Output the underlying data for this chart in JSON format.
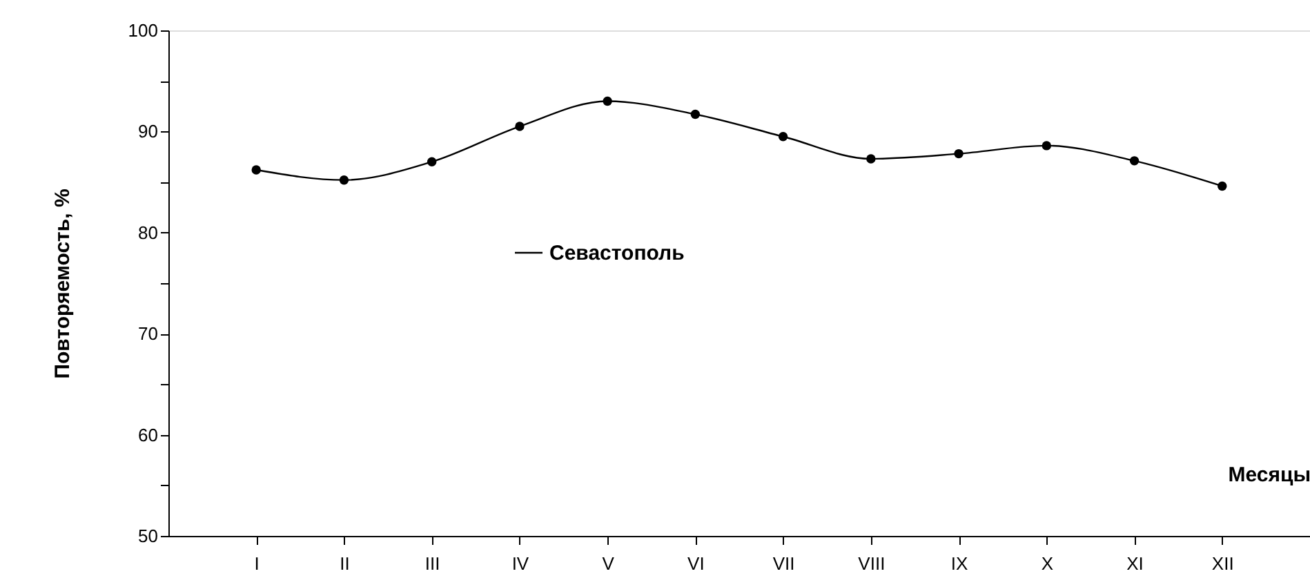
{
  "chart_data": {
    "type": "line",
    "xlabel": "Месяцы",
    "ylabel": "Повторяемость, %",
    "categories": [
      "I",
      "II",
      "III",
      "IV",
      "V",
      "VI",
      "VII",
      "VIII",
      "IX",
      "X",
      "XI",
      "XII"
    ],
    "series": [
      {
        "name": "Севастополь",
        "color": "#000000",
        "values": [
          86.2,
          85.2,
          87.0,
          90.5,
          93.0,
          91.7,
          89.5,
          87.3,
          87.8,
          88.6,
          87.1,
          84.6
        ]
      }
    ],
    "ylim": [
      50,
      100
    ],
    "yticks": [
      50,
      {
        "value": 55,
        "label": null
      },
      60,
      {
        "value": 65,
        "label": null
      },
      70,
      {
        "value": 75,
        "label": null
      },
      80,
      {
        "value": 85,
        "label": null
      },
      90,
      {
        "value": 95,
        "label": null
      },
      100
    ],
    "grid": false,
    "legend": "center",
    "marker": "circle",
    "line_style": "solid"
  }
}
